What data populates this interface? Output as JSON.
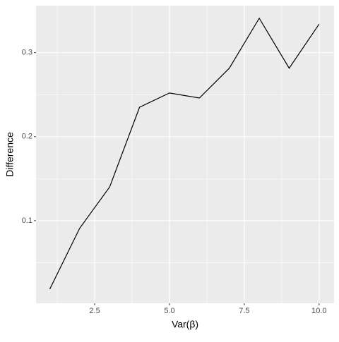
{
  "chart_data": {
    "type": "line",
    "x_label": "Var(β)",
    "y_label": "Difference",
    "x": [
      1,
      2,
      3,
      4,
      5,
      6,
      7,
      8,
      9,
      10
    ],
    "series": [
      {
        "color": "#000000",
        "values": [
          0.0185,
          0.091,
          0.14,
          0.235,
          0.252,
          0.246,
          0.2815,
          0.341,
          0.2815,
          0.334
        ]
      }
    ],
    "xlim": [
      0.54,
      10.5
    ],
    "ylim": [
      0.0017,
      0.356
    ],
    "xticks": [
      2.5,
      {
        "value": 5.0,
        "label": "5.0"
      },
      7.5,
      {
        "value": 10.0,
        "label": "10.0"
      }
    ],
    "yticks": [
      0.1,
      0.2,
      0.3
    ],
    "grid": true
  }
}
